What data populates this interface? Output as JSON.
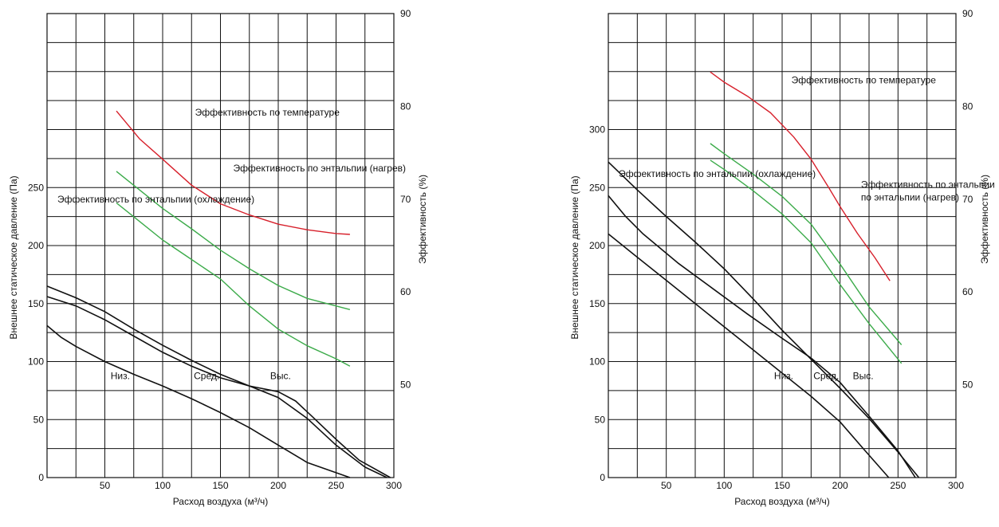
{
  "chart_data": [
    {
      "type": "line",
      "xlabel": "Расход воздуха (м³/ч)",
      "ylabel": "Внешнее статическое давление (Па)",
      "y2label": "Эффективность (%)",
      "xlim": [
        0,
        300
      ],
      "ylim": [
        0,
        400
      ],
      "y2lim": [
        40,
        90
      ],
      "grid": true,
      "x_ticks": [
        {
          "value": 50,
          "label": "50"
        },
        {
          "value": 100,
          "label": "100"
        },
        {
          "value": 150,
          "label": "150"
        },
        {
          "value": 200,
          "label": "200"
        },
        {
          "value": 250,
          "label": "250"
        },
        {
          "value": 300,
          "label": "300"
        }
      ],
      "y_ticks": [
        {
          "value": 0,
          "label": "0"
        },
        {
          "value": 50,
          "label": "50"
        },
        {
          "value": 100,
          "label": "100"
        },
        {
          "value": 150,
          "label": "150"
        },
        {
          "value": 200,
          "label": "200"
        },
        {
          "value": 250,
          "label": "250"
        }
      ],
      "y2_ticks": [
        {
          "value": 50,
          "label": "50"
        },
        {
          "value": 60,
          "label": "60"
        },
        {
          "value": 70,
          "label": "70"
        },
        {
          "value": 80,
          "label": "80"
        },
        {
          "value": 90,
          "label": "90"
        }
      ],
      "pressure_series": [
        {
          "name": "Низ.",
          "color": "#111111",
          "points": [
            [
              0,
              131
            ],
            [
              12,
              121
            ],
            [
              25,
              113
            ],
            [
              50,
              100
            ],
            [
              75,
              89
            ],
            [
              100,
              79
            ],
            [
              125,
              68
            ],
            [
              150,
              56
            ],
            [
              175,
              43
            ],
            [
              200,
              28
            ],
            [
              225,
              13
            ],
            [
              262,
              0
            ]
          ]
        },
        {
          "name": "Сред.",
          "color": "#111111",
          "points": [
            [
              0,
              156
            ],
            [
              25,
              148
            ],
            [
              50,
              136
            ],
            [
              75,
              122
            ],
            [
              100,
              108
            ],
            [
              125,
              96
            ],
            [
              150,
              86
            ],
            [
              175,
              79
            ],
            [
              200,
              69
            ],
            [
              225,
              51
            ],
            [
              250,
              28
            ],
            [
              275,
              9
            ],
            [
              294,
              0
            ]
          ]
        },
        {
          "name": "Выс.",
          "color": "#111111",
          "points": [
            [
              0,
              165
            ],
            [
              25,
              155
            ],
            [
              50,
              143
            ],
            [
              75,
              128
            ],
            [
              100,
              114
            ],
            [
              125,
              101
            ],
            [
              150,
              89
            ],
            [
              175,
              79
            ],
            [
              200,
              74
            ],
            [
              215,
              66
            ],
            [
              230,
              52
            ],
            [
              250,
              33
            ],
            [
              270,
              15
            ],
            [
              297,
              0
            ]
          ]
        }
      ],
      "efficiency_series": [
        {
          "name": "Эффективность по температуре",
          "color": "#d7202b",
          "points": [
            [
              60,
              79.5
            ],
            [
              80,
              76.5
            ],
            [
              100,
              74.3
            ],
            [
              125,
              71.5
            ],
            [
              150,
              69.5
            ],
            [
              175,
              68.3
            ],
            [
              200,
              67.3
            ],
            [
              225,
              66.7
            ],
            [
              250,
              66.3
            ],
            [
              262,
              66.2
            ]
          ]
        },
        {
          "name": "Эффективность по энтальпии (нагрев)",
          "color": "#3cab4a",
          "points": [
            [
              60,
              73
            ],
            [
              80,
              71
            ],
            [
              100,
              69
            ],
            [
              125,
              66.8
            ],
            [
              150,
              64.5
            ],
            [
              175,
              62.5
            ],
            [
              200,
              60.7
            ],
            [
              225,
              59.3
            ],
            [
              262,
              58.1
            ]
          ]
        },
        {
          "name": "Эффективность по энтальпии (охлаждение)",
          "color": "#3cab4a",
          "points": [
            [
              60,
              69.6
            ],
            [
              80,
              67.6
            ],
            [
              100,
              65.6
            ],
            [
              125,
              63.5
            ],
            [
              150,
              61.4
            ],
            [
              175,
              58.5
            ],
            [
              200,
              56
            ],
            [
              225,
              54.2
            ],
            [
              250,
              52.8
            ],
            [
              262,
              52
            ]
          ]
        }
      ],
      "annotations": [
        {
          "text": "Эффективность по температуре",
          "x": 128,
          "y": 312
        },
        {
          "text": "Эффективность по энтальпии (нагрев)",
          "x": 161,
          "y": 264
        },
        {
          "text": "Эффективность по энтальпии (охлаждение)",
          "x": 9,
          "y": 237
        },
        {
          "text": "Низ.",
          "x": 55,
          "y": 85
        },
        {
          "text": "Сред.",
          "x": 127,
          "y": 85
        },
        {
          "text": "Выс.",
          "x": 193,
          "y": 85
        }
      ]
    },
    {
      "type": "line",
      "xlabel": "Расход воздуха (м³/ч)",
      "ylabel": "Внешнее статическое давление (Па)",
      "y2label": "Эффективность (%)",
      "xlim": [
        0,
        300
      ],
      "ylim": [
        0,
        400
      ],
      "y2lim": [
        40,
        90
      ],
      "grid": true,
      "x_ticks": [
        {
          "value": 50,
          "label": "50"
        },
        {
          "value": 100,
          "label": "100"
        },
        {
          "value": 150,
          "label": "150"
        },
        {
          "value": 200,
          "label": "200"
        },
        {
          "value": 250,
          "label": "250"
        },
        {
          "value": 300,
          "label": "300"
        }
      ],
      "y_ticks": [
        {
          "value": 0,
          "label": "0"
        },
        {
          "value": 50,
          "label": "50"
        },
        {
          "value": 100,
          "label": "100"
        },
        {
          "value": 150,
          "label": "150"
        },
        {
          "value": 200,
          "label": "200"
        },
        {
          "value": 250,
          "label": "250"
        },
        {
          "value": 300,
          "label": "300"
        }
      ],
      "y2_ticks": [
        {
          "value": 50,
          "label": "50"
        },
        {
          "value": 60,
          "label": "60"
        },
        {
          "value": 70,
          "label": "70"
        },
        {
          "value": 80,
          "label": "80"
        },
        {
          "value": 90,
          "label": "90"
        }
      ],
      "pressure_series": [
        {
          "name": "Низ.",
          "color": "#111111",
          "points": [
            [
              0,
              210
            ],
            [
              25,
              190
            ],
            [
              50,
              170
            ],
            [
              75,
              150
            ],
            [
              100,
              130
            ],
            [
              125,
              110
            ],
            [
              150,
              90
            ],
            [
              175,
              70
            ],
            [
              200,
              48
            ],
            [
              220,
              25
            ],
            [
              235,
              8
            ],
            [
              242,
              0
            ]
          ]
        },
        {
          "name": "Сред.",
          "color": "#111111",
          "points": [
            [
              0,
              243
            ],
            [
              15,
              225
            ],
            [
              30,
              210
            ],
            [
              60,
              185
            ],
            [
              90,
              163
            ],
            [
              120,
              141
            ],
            [
              150,
              120
            ],
            [
              175,
              103
            ],
            [
              200,
              82
            ],
            [
              225,
              53
            ],
            [
              250,
              23
            ],
            [
              265,
              0
            ]
          ]
        },
        {
          "name": "Выс.",
          "color": "#111111",
          "points": [
            [
              0,
              272
            ],
            [
              25,
              248
            ],
            [
              50,
              225
            ],
            [
              75,
              203
            ],
            [
              100,
              180
            ],
            [
              125,
              154
            ],
            [
              150,
              127
            ],
            [
              175,
              102
            ],
            [
              200,
              77
            ],
            [
              225,
              51
            ],
            [
              250,
              22
            ],
            [
              268,
              0
            ]
          ]
        }
      ],
      "efficiency_series": [
        {
          "name": "Эффективность по температуре",
          "color": "#d7202b",
          "points": [
            [
              88,
              83.7
            ],
            [
              100,
              82.6
            ],
            [
              120,
              81.1
            ],
            [
              140,
              79.3
            ],
            [
              160,
              76.7
            ],
            [
              175,
              74.3
            ],
            [
              190,
              71.3
            ],
            [
              200,
              69.2
            ],
            [
              215,
              66.3
            ],
            [
              230,
              63.7
            ],
            [
              243,
              61.2
            ]
          ]
        },
        {
          "name": "Эффективность по энтальпии (нагрев)",
          "color": "#3cab4a",
          "points": [
            [
              88,
              76
            ],
            [
              100,
              74.9
            ],
            [
              125,
              72.7
            ],
            [
              150,
              70.3
            ],
            [
              175,
              67.3
            ],
            [
              200,
              63
            ],
            [
              225,
              58.4
            ],
            [
              253,
              54.3
            ]
          ]
        },
        {
          "name": "Эффективность по энтальпии (охлаждение)",
          "color": "#3cab4a",
          "points": [
            [
              88,
              74.2
            ],
            [
              100,
              73.2
            ],
            [
              125,
              70.9
            ],
            [
              150,
              68.4
            ],
            [
              175,
              65.3
            ],
            [
              200,
              60.8
            ],
            [
              225,
              56.6
            ],
            [
              253,
              52.3
            ]
          ]
        }
      ],
      "annotations": [
        {
          "text": "Эффективность по температуре",
          "x": 158,
          "y": 340
        },
        {
          "text": "Эффективность по энтальпии (охлаждение)",
          "x": 9,
          "y": 259
        },
        {
          "text": "Эффективность по энтальпии",
          "x": 218,
          "y": 250
        },
        {
          "text": "по энтальпии (нагрев)",
          "x": 218,
          "y": 239
        },
        {
          "text": "Низ.",
          "x": 143,
          "y": 85
        },
        {
          "text": "Сред.",
          "x": 177,
          "y": 85
        },
        {
          "text": "Выс.",
          "x": 211,
          "y": 85
        }
      ]
    }
  ]
}
